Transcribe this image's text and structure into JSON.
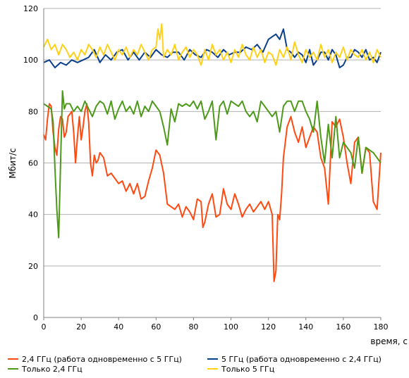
{
  "chart_data": {
    "type": "line",
    "xlabel": "время, с",
    "ylabel": "Мбит/с",
    "xlim": [
      0,
      180
    ],
    "ylim": [
      0,
      120
    ],
    "x_ticks": [
      0,
      20,
      40,
      60,
      80,
      100,
      120,
      140,
      160,
      180
    ],
    "y_ticks": [
      0,
      20,
      40,
      60,
      80,
      100,
      120
    ],
    "grid": "horizontal",
    "legend_position": "bottom",
    "series": [
      {
        "name": "2,4 ГГц (работа одновременно с 5 ГГц)",
        "color": "#ff4a12",
        "x": [
          0,
          1,
          2,
          3,
          4,
          5,
          6,
          7,
          8,
          9,
          10,
          11,
          12,
          13,
          14,
          15,
          16,
          17,
          18,
          19,
          20,
          21,
          22,
          23,
          24,
          25,
          26,
          27,
          28,
          29,
          30,
          32,
          34,
          36,
          38,
          40,
          42,
          44,
          46,
          48,
          50,
          52,
          54,
          56,
          58,
          60,
          62,
          64,
          66,
          68,
          70,
          72,
          74,
          76,
          78,
          80,
          82,
          84,
          85,
          86,
          88,
          90,
          92,
          94,
          96,
          98,
          100,
          102,
          104,
          106,
          108,
          110,
          112,
          114,
          116,
          118,
          120,
          122,
          123,
          124,
          125,
          126,
          127,
          128,
          130,
          132,
          134,
          136,
          138,
          140,
          142,
          144,
          146,
          148,
          150,
          152,
          154,
          156,
          158,
          160,
          162,
          164,
          166,
          168,
          170,
          172,
          174,
          176,
          178,
          180
        ],
        "values": [
          71,
          69,
          77,
          83,
          82,
          72,
          66,
          63,
          73,
          78,
          77,
          70,
          72,
          78,
          79,
          80,
          72,
          60,
          70,
          78,
          69,
          74,
          80,
          83,
          76,
          60,
          55,
          63,
          60,
          61,
          64,
          62,
          55,
          56,
          54,
          52,
          53,
          49,
          52,
          48,
          52,
          46,
          47,
          53,
          58,
          65,
          63,
          56,
          44,
          43,
          42,
          44,
          39,
          43,
          41,
          38,
          46,
          45,
          35,
          37,
          44,
          48,
          39,
          40,
          50,
          44,
          42,
          48,
          44,
          39,
          42,
          44,
          41,
          43,
          45,
          42,
          45,
          40,
          14,
          18,
          40,
          38,
          48,
          62,
          74,
          78,
          72,
          68,
          74,
          66,
          70,
          74,
          72,
          62,
          58,
          44,
          76,
          74,
          77,
          70,
          60,
          52,
          68,
          70,
          56,
          66,
          64,
          45,
          42,
          64
        ]
      },
      {
        "name": "5 ГГц (работа одновременно с 2,4 ГГц)",
        "color": "#0b3f8c",
        "x": [
          0,
          3,
          6,
          9,
          12,
          15,
          18,
          21,
          24,
          27,
          30,
          33,
          36,
          39,
          42,
          45,
          48,
          51,
          54,
          57,
          60,
          63,
          66,
          69,
          72,
          75,
          78,
          81,
          84,
          87,
          90,
          93,
          96,
          99,
          102,
          105,
          108,
          111,
          114,
          117,
          120,
          122,
          124,
          126,
          128,
          130,
          132,
          134,
          136,
          138,
          140,
          142,
          144,
          146,
          148,
          150,
          152,
          154,
          156,
          158,
          160,
          162,
          164,
          166,
          168,
          170,
          172,
          174,
          176,
          178,
          180
        ],
        "values": [
          99,
          100,
          97,
          99,
          98,
          100,
          99,
          100,
          101,
          104,
          99,
          102,
          100,
          103,
          104,
          100,
          103,
          100,
          103,
          101,
          104,
          102,
          101,
          103,
          103,
          100,
          104,
          102,
          101,
          104,
          103,
          101,
          104,
          102,
          103,
          103,
          105,
          104,
          106,
          103,
          108,
          109,
          110,
          108,
          112,
          104,
          103,
          101,
          103,
          102,
          99,
          104,
          98,
          100,
          103,
          103,
          100,
          104,
          102,
          97,
          98,
          101,
          101,
          104,
          103,
          101,
          104,
          100,
          101,
          99,
          103
        ]
      },
      {
        "name": "Только 2,4 ГГц",
        "color": "#4d9a1a",
        "x": [
          0,
          2,
          4,
          5,
          6,
          7,
          8,
          9,
          10,
          11,
          12,
          14,
          16,
          18,
          20,
          22,
          24,
          26,
          28,
          30,
          32,
          34,
          36,
          38,
          40,
          42,
          44,
          46,
          48,
          50,
          52,
          54,
          56,
          58,
          60,
          62,
          64,
          66,
          68,
          70,
          72,
          74,
          76,
          78,
          80,
          82,
          84,
          86,
          88,
          90,
          92,
          94,
          96,
          98,
          100,
          102,
          104,
          106,
          108,
          110,
          112,
          114,
          116,
          118,
          120,
          122,
          124,
          126,
          128,
          130,
          132,
          134,
          136,
          138,
          140,
          142,
          144,
          146,
          148,
          150,
          152,
          154,
          156,
          158,
          160,
          162,
          164,
          166,
          168,
          170,
          172,
          174,
          176,
          178,
          180
        ],
        "values": [
          83,
          82,
          81,
          76,
          58,
          42,
          31,
          60,
          88,
          81,
          83,
          83,
          80,
          82,
          80,
          84,
          81,
          78,
          82,
          84,
          83,
          79,
          84,
          77,
          81,
          84,
          80,
          82,
          79,
          84,
          78,
          82,
          80,
          84,
          82,
          80,
          74,
          67,
          81,
          76,
          83,
          82,
          83,
          82,
          84,
          81,
          84,
          77,
          80,
          84,
          69,
          82,
          84,
          79,
          84,
          83,
          82,
          84,
          80,
          78,
          80,
          76,
          84,
          82,
          80,
          78,
          80,
          72,
          82,
          84,
          84,
          80,
          84,
          84,
          80,
          77,
          72,
          84,
          70,
          60,
          75,
          62,
          78,
          62,
          68,
          66,
          64,
          58,
          70,
          56,
          66,
          65,
          64,
          62,
          60
        ]
      },
      {
        "name": "Только 5 ГГц",
        "color": "#ffd11a",
        "x": [
          0,
          2,
          4,
          6,
          8,
          10,
          12,
          14,
          16,
          18,
          20,
          22,
          24,
          26,
          28,
          30,
          32,
          34,
          36,
          38,
          40,
          42,
          44,
          46,
          48,
          50,
          52,
          54,
          56,
          58,
          60,
          61,
          62,
          63,
          64,
          66,
          68,
          70,
          72,
          74,
          76,
          78,
          80,
          82,
          84,
          86,
          88,
          90,
          92,
          94,
          96,
          98,
          100,
          102,
          104,
          106,
          108,
          110,
          112,
          114,
          116,
          118,
          120,
          122,
          124,
          126,
          128,
          130,
          132,
          134,
          136,
          138,
          140,
          142,
          144,
          146,
          148,
          150,
          152,
          154,
          156,
          158,
          160,
          162,
          164,
          166,
          168,
          170,
          172,
          174,
          176,
          178,
          180
        ],
        "values": [
          105,
          108,
          104,
          106,
          102,
          106,
          104,
          101,
          103,
          100,
          104,
          102,
          106,
          104,
          101,
          105,
          102,
          106,
          103,
          100,
          104,
          102,
          105,
          101,
          104,
          102,
          106,
          103,
          100,
          104,
          105,
          112,
          108,
          114,
          101,
          104,
          102,
          106,
          100,
          103,
          105,
          101,
          104,
          102,
          98,
          104,
          100,
          106,
          102,
          104,
          100,
          103,
          99,
          104,
          101,
          106,
          102,
          100,
          105,
          101,
          104,
          99,
          103,
          102,
          98,
          104,
          101,
          105,
          100,
          107,
          102,
          99,
          104,
          101,
          103,
          100,
          106,
          101,
          104,
          99,
          103,
          101,
          105,
          100,
          104,
          102,
          101,
          104,
          100,
          103,
          99,
          104,
          101
        ]
      }
    ]
  }
}
